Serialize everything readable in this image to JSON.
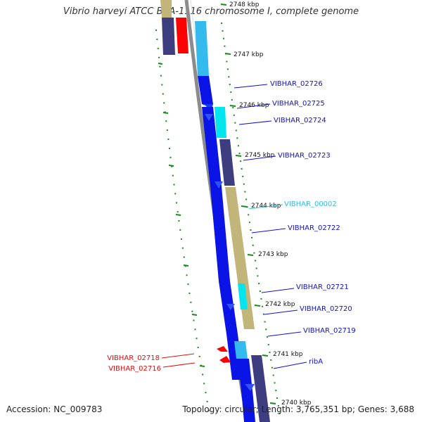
{
  "title": "Vibrio harveyi ATCC BAA-1116 chromosome I, complete genome",
  "accession": "Accession: NC_009783",
  "summary": "Topology: circular; Length: 3,765,351 bp; Genes: 3,688",
  "ticks": [
    {
      "label": "2748 kbp"
    },
    {
      "label": "2747 kbp"
    },
    {
      "label": "2746 kbp"
    },
    {
      "label": "2745 kbp"
    },
    {
      "label": "2744 kbp"
    },
    {
      "label": "2743 kbp"
    },
    {
      "label": "2742 kbp"
    },
    {
      "label": "2741 kbp"
    },
    {
      "label": "2740 kbp"
    }
  ],
  "gene_labels": [
    {
      "name": "VIBHAR_02726",
      "color": "#1111cc"
    },
    {
      "name": "VIBHAR_02725",
      "color": "#1111cc"
    },
    {
      "name": "VIBHAR_02724",
      "color": "#1111cc"
    },
    {
      "name": "VIBHAR_02723",
      "color": "#1111cc"
    },
    {
      "name": "VIBHAR_00002",
      "color": "#33bbdd"
    },
    {
      "name": "VIBHAR_02722",
      "color": "#1111cc"
    },
    {
      "name": "VIBHAR_02721",
      "color": "#1111cc"
    },
    {
      "name": "VIBHAR_02720",
      "color": "#1111cc"
    },
    {
      "name": "VIBHAR_02719",
      "color": "#1111cc"
    },
    {
      "name": "ribA",
      "color": "#1111cc"
    },
    {
      "name": "VIBHAR_02718",
      "color": "#dd1111"
    },
    {
      "name": "VIBHAR_02716",
      "color": "#dd1111"
    }
  ],
  "colors": {
    "cds_blue": "#0a14e6",
    "rrna_cyan": "#00e5ee",
    "light_blue": "#33bbee",
    "dark_slate": "#3d3d80",
    "khaki": "#c2b57a",
    "red": "#ff0000",
    "backbone_grey": "#8c8c8c",
    "tick_green": "#1a8a1a"
  }
}
